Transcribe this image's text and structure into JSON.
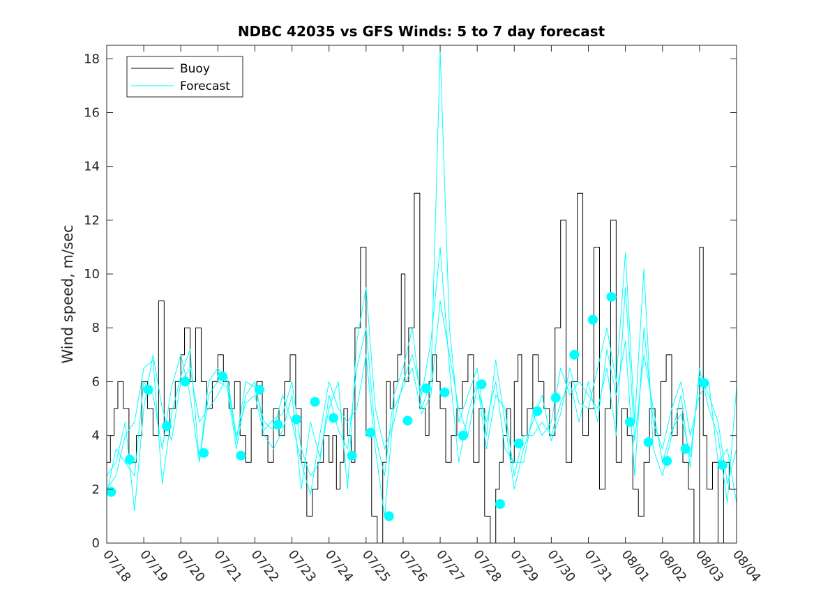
{
  "chart_data": {
    "type": "line",
    "title": "NDBC 42035 vs GFS Winds: 5 to 7 day forecast",
    "xlabel": "",
    "ylabel": "Wind speed, m/sec",
    "xlim": [
      0,
      17
    ],
    "ylim": [
      0,
      18.5
    ],
    "x_ticks": [
      "07/18",
      "07/19",
      "07/20",
      "07/21",
      "07/22",
      "07/23",
      "07/24",
      "07/25",
      "07/26",
      "07/27",
      "07/28",
      "07/29",
      "07/30",
      "07/31",
      "08/01",
      "08/02",
      "08/03",
      "08/04"
    ],
    "y_ticks": [
      0,
      2,
      4,
      6,
      8,
      10,
      12,
      14,
      16,
      18
    ],
    "grid": false,
    "legend": {
      "placement": "top-left",
      "entries": [
        "Buoy",
        "Forecast"
      ]
    },
    "colors": {
      "buoy": "#000000",
      "forecast": "#00ffff",
      "markers": "#00ffff"
    },
    "series": [
      {
        "name": "Buoy",
        "style": "step",
        "x": [
          0,
          0.1,
          0.2,
          0.3,
          0.45,
          0.6,
          0.8,
          0.95,
          1.1,
          1.25,
          1.4,
          1.55,
          1.7,
          1.85,
          2.0,
          2.1,
          2.25,
          2.4,
          2.55,
          2.7,
          2.85,
          3.0,
          3.15,
          3.3,
          3.45,
          3.6,
          3.75,
          3.9,
          4.05,
          4.2,
          4.35,
          4.5,
          4.65,
          4.8,
          4.95,
          5.1,
          5.25,
          5.4,
          5.55,
          5.7,
          5.85,
          6.0,
          6.1,
          6.2,
          6.3,
          6.4,
          6.5,
          6.6,
          6.7,
          6.85,
          7.0,
          7.15,
          7.3,
          7.45,
          7.55,
          7.65,
          7.75,
          7.85,
          7.95,
          8.05,
          8.15,
          8.3,
          8.45,
          8.6,
          8.7,
          8.8,
          8.9,
          9.0,
          9.15,
          9.3,
          9.45,
          9.6,
          9.75,
          9.9,
          10.05,
          10.2,
          10.35,
          10.5,
          10.6,
          10.7,
          10.8,
          10.9,
          11.0,
          11.1,
          11.2,
          11.35,
          11.5,
          11.65,
          11.8,
          11.95,
          12.1,
          12.25,
          12.4,
          12.55,
          12.7,
          12.85,
          13.0,
          13.15,
          13.3,
          13.45,
          13.6,
          13.75,
          13.9,
          14.05,
          14.2,
          14.35,
          14.5,
          14.65,
          14.8,
          14.95,
          15.1,
          15.25,
          15.4,
          15.55,
          15.7,
          15.85,
          16.0,
          16.1,
          16.2,
          16.35,
          16.5,
          16.65,
          16.8,
          17.0
        ],
        "y": [
          3,
          4,
          5,
          6,
          5,
          3,
          4,
          6,
          5,
          4,
          9,
          4,
          5,
          6,
          7,
          8,
          6,
          8,
          6,
          5,
          6,
          7,
          6,
          5,
          6,
          4,
          3,
          5,
          6,
          4,
          3,
          5,
          4,
          6,
          7,
          5,
          3,
          1,
          2,
          3,
          4,
          3,
          4,
          2,
          3,
          5,
          4,
          3,
          8,
          11,
          4,
          1,
          0,
          3,
          6,
          5,
          6,
          7,
          10,
          6,
          8,
          13,
          5,
          4,
          6,
          7,
          6,
          5,
          3,
          4,
          5,
          6,
          7,
          3,
          5,
          1,
          0,
          2,
          3,
          4,
          5,
          3,
          6,
          7,
          4,
          5,
          7,
          6,
          5,
          4,
          8,
          12,
          3,
          6,
          13,
          4,
          5,
          11,
          2,
          5,
          12,
          3,
          5,
          4,
          2,
          1,
          3,
          5,
          4,
          6,
          7,
          4,
          5,
          3,
          2,
          0,
          11,
          4,
          2,
          3,
          0,
          3,
          2,
          1
        ]
      },
      {
        "name": "Forecast",
        "x": [
          0,
          0.25,
          0.5,
          0.75,
          1.0,
          1.25,
          1.5,
          1.75,
          2.0,
          2.25,
          2.5,
          2.75,
          3.0,
          3.25,
          3.5,
          3.75,
          4.0,
          4.25,
          4.5,
          4.75,
          5.0,
          5.25,
          5.5,
          5.75,
          6.0,
          6.25,
          6.5,
          6.75,
          7.0,
          7.25,
          7.5,
          7.75,
          8.0,
          8.25,
          8.5,
          8.75,
          9.0,
          9.25,
          9.5,
          9.75,
          10.0,
          10.25,
          10.5,
          10.75,
          11.0,
          11.25,
          11.5,
          11.75,
          12.0,
          12.25,
          12.5,
          12.75,
          13.0,
          13.25,
          13.5,
          13.75,
          14.0,
          14.25,
          14.5,
          14.75,
          15.0,
          15.25,
          15.5,
          15.75,
          16.0,
          16.25,
          16.5,
          16.75,
          17.0
        ],
        "y": [
          2.0,
          2.5,
          4.0,
          4.5,
          6.5,
          6.8,
          2.2,
          4.8,
          6.2,
          7.2,
          3.0,
          5.5,
          6.0,
          5.8,
          3.5,
          5.5,
          6.0,
          4.2,
          4.6,
          4.8,
          6.0,
          3.5,
          2.5,
          3.0,
          5.5,
          4.2,
          3.5,
          6.5,
          8.0,
          4.0,
          2.5,
          5.5,
          6.5,
          8.0,
          5.0,
          6.0,
          18.3,
          8.0,
          4.5,
          5.5,
          6.5,
          4.0,
          6.8,
          4.5,
          2.0,
          3.5,
          4.5,
          5.5,
          3.8,
          4.8,
          6.5,
          5.2,
          5.0,
          6.5,
          8.0,
          6.0,
          10.8,
          4.5,
          10.2,
          3.5,
          2.5,
          4.0,
          5.5,
          2.8,
          6.5,
          5.0,
          4.0,
          1.5,
          5.8
        ]
      },
      {
        "name": "Forecast",
        "x": [
          0,
          0.25,
          0.5,
          0.75,
          1.0,
          1.25,
          1.5,
          1.75,
          2.0,
          2.25,
          2.5,
          2.75,
          3.0,
          3.25,
          3.5,
          3.75,
          4.0,
          4.25,
          4.5,
          4.75,
          5.0,
          5.25,
          5.5,
          5.75,
          6.0,
          6.25,
          6.5,
          6.75,
          7.0,
          7.25,
          7.5,
          7.75,
          8.0,
          8.25,
          8.5,
          8.75,
          9.0,
          9.25,
          9.5,
          9.75,
          10.0,
          10.25,
          10.5,
          10.75,
          11.0,
          11.25,
          11.5,
          11.75,
          12.0,
          12.25,
          12.5,
          12.75,
          13.0,
          13.25,
          13.5,
          13.75,
          14.0,
          14.25,
          14.5,
          14.75,
          15.0,
          15.25,
          15.5,
          15.75,
          16.0,
          16.25,
          16.5,
          16.75,
          17.0
        ],
        "y": [
          2.5,
          3.0,
          4.5,
          1.2,
          5.0,
          7.0,
          5.0,
          3.8,
          6.0,
          6.5,
          4.5,
          5.0,
          5.5,
          6.2,
          4.0,
          5.2,
          5.5,
          4.0,
          3.5,
          4.2,
          5.5,
          2.0,
          4.5,
          3.2,
          5.0,
          6.0,
          2.0,
          7.5,
          9.5,
          5.0,
          3.5,
          4.5,
          6.0,
          7.0,
          5.5,
          7.5,
          11.0,
          6.5,
          3.0,
          4.8,
          6.0,
          3.5,
          5.5,
          5.0,
          2.5,
          4.0,
          4.0,
          4.5,
          4.0,
          5.2,
          6.0,
          4.5,
          6.0,
          4.5,
          7.2,
          5.5,
          7.5,
          2.5,
          8.0,
          4.5,
          3.5,
          5.0,
          6.0,
          4.0,
          5.5,
          6.0,
          3.0,
          3.5,
          1.5
        ]
      },
      {
        "name": "Forecast",
        "x": [
          0,
          0.25,
          0.5,
          0.75,
          1.0,
          1.25,
          1.5,
          1.75,
          2.0,
          2.25,
          2.5,
          2.75,
          3.0,
          3.25,
          3.5,
          3.75,
          4.0,
          4.25,
          4.5,
          4.75,
          5.0,
          5.25,
          5.5,
          5.75,
          6.0,
          6.25,
          6.5,
          6.75,
          7.0,
          7.25,
          7.5,
          7.75,
          8.0,
          8.25,
          8.5,
          8.75,
          9.0,
          9.25,
          9.5,
          9.75,
          10.0,
          10.25,
          10.5,
          10.75,
          11.0,
          11.25,
          11.5,
          11.75,
          12.0,
          12.25,
          12.5,
          12.75,
          13.0,
          13.25,
          13.5,
          13.75,
          14.0,
          14.25,
          14.5,
          14.75,
          15.0,
          15.25,
          15.5,
          15.75,
          16.0,
          16.25,
          16.5,
          16.75,
          17.0
        ],
        "y": [
          1.8,
          3.5,
          3.0,
          2.5,
          6.0,
          5.5,
          3.5,
          5.8,
          7.0,
          5.5,
          3.0,
          6.0,
          6.5,
          6.0,
          3.8,
          6.0,
          5.8,
          4.5,
          4.2,
          5.5,
          4.5,
          3.0,
          1.8,
          4.0,
          6.0,
          5.0,
          4.5,
          5.0,
          7.0,
          3.5,
          1.0,
          5.0,
          5.8,
          6.5,
          4.8,
          5.5,
          9.0,
          7.0,
          5.0,
          4.0,
          5.8,
          4.5,
          6.0,
          3.5,
          3.0,
          3.0,
          4.8,
          4.0,
          4.5,
          6.5,
          5.5,
          6.0,
          5.5,
          5.0,
          6.5,
          4.0,
          9.5,
          3.8,
          7.0,
          5.0,
          3.0,
          4.2,
          4.8,
          3.2,
          6.2,
          5.5,
          4.5,
          2.2,
          3.5
        ]
      }
    ],
    "markers": {
      "x": [
        0.12,
        0.62,
        1.12,
        1.62,
        2.12,
        2.62,
        3.12,
        3.62,
        4.12,
        4.62,
        5.12,
        5.62,
        6.12,
        6.62,
        7.12,
        7.62,
        8.12,
        8.62,
        9.12,
        9.62,
        10.12,
        10.62,
        11.12,
        11.62,
        12.12,
        12.62,
        13.12,
        13.62,
        14.12,
        14.62,
        15.12,
        15.62,
        16.12,
        16.62
      ],
      "y": [
        1.9,
        3.1,
        5.7,
        4.35,
        6.0,
        3.35,
        6.2,
        3.25,
        5.7,
        4.4,
        4.6,
        5.25,
        4.65,
        3.25,
        4.1,
        1.0,
        4.55,
        5.75,
        5.6,
        4.0,
        5.9,
        1.45,
        3.7,
        4.9,
        5.4,
        7.0,
        8.3,
        9.15,
        4.5,
        3.75,
        3.05,
        3.5,
        5.95,
        2.9
      ]
    }
  }
}
